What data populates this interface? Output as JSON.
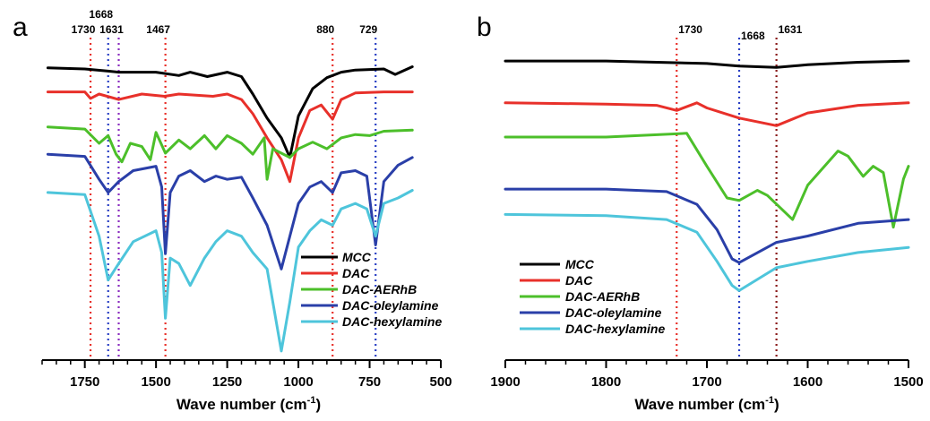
{
  "chart_data": [
    {
      "panel_label": "a",
      "type": "line",
      "xlabel": "Wave number (cm",
      "xlabel_sup": "-1",
      "xlabel_end": ")",
      "ylabel": "",
      "x_reversed": true,
      "xlim": [
        1900,
        500
      ],
      "ylim": [
        -1.4,
        1.5
      ],
      "xticks": [
        1750,
        1500,
        1250,
        1000,
        750,
        500
      ],
      "tick_labels": [
        "1750",
        "1500",
        "1250",
        "1000",
        "750",
        "500"
      ],
      "legend_position": "bottom-right",
      "annotations": [
        {
          "label": "1730",
          "x": 1730,
          "color": "#e8302a"
        },
        {
          "label": "1668",
          "x": 1668,
          "color": "#2a3fc4"
        },
        {
          "label": "1631",
          "x": 1631,
          "color": "#8a2bbf"
        },
        {
          "label": "1467",
          "x": 1467,
          "color": "#e8302a"
        },
        {
          "label": "880",
          "x": 880,
          "color": "#e8302a"
        },
        {
          "label": "729",
          "x": 729,
          "color": "#2a3fc4"
        }
      ],
      "series": [
        {
          "name": "MCC",
          "color": "#000000",
          "points": [
            [
              1880,
              1.24
            ],
            [
              1750,
              1.23
            ],
            [
              1668,
              1.21
            ],
            [
              1631,
              1.2
            ],
            [
              1500,
              1.2
            ],
            [
              1420,
              1.17
            ],
            [
              1380,
              1.2
            ],
            [
              1320,
              1.16
            ],
            [
              1250,
              1.2
            ],
            [
              1200,
              1.16
            ],
            [
              1160,
              1.0
            ],
            [
              1110,
              0.78
            ],
            [
              1060,
              0.6
            ],
            [
              1030,
              0.42
            ],
            [
              1000,
              0.8
            ],
            [
              950,
              1.05
            ],
            [
              900,
              1.15
            ],
            [
              850,
              1.2
            ],
            [
              800,
              1.22
            ],
            [
              700,
              1.23
            ],
            [
              660,
              1.18
            ],
            [
              600,
              1.25
            ]
          ]
        },
        {
          "name": "DAC",
          "color": "#e8302a",
          "points": [
            [
              1880,
              1.02
            ],
            [
              1750,
              1.02
            ],
            [
              1730,
              0.96
            ],
            [
              1700,
              1.0
            ],
            [
              1631,
              0.95
            ],
            [
              1550,
              1.0
            ],
            [
              1470,
              0.98
            ],
            [
              1420,
              1.0
            ],
            [
              1300,
              0.98
            ],
            [
              1250,
              1.0
            ],
            [
              1200,
              0.95
            ],
            [
              1160,
              0.82
            ],
            [
              1110,
              0.6
            ],
            [
              1060,
              0.4
            ],
            [
              1030,
              0.2
            ],
            [
              1000,
              0.6
            ],
            [
              960,
              0.85
            ],
            [
              920,
              0.9
            ],
            [
              880,
              0.77
            ],
            [
              850,
              0.95
            ],
            [
              800,
              1.01
            ],
            [
              700,
              1.02
            ],
            [
              600,
              1.02
            ]
          ]
        },
        {
          "name": "DAC-AERhB",
          "color": "#4cbf2a",
          "points": [
            [
              1880,
              0.7
            ],
            [
              1750,
              0.68
            ],
            [
              1700,
              0.55
            ],
            [
              1668,
              0.62
            ],
            [
              1640,
              0.45
            ],
            [
              1620,
              0.38
            ],
            [
              1590,
              0.55
            ],
            [
              1550,
              0.52
            ],
            [
              1520,
              0.4
            ],
            [
              1500,
              0.65
            ],
            [
              1467,
              0.46
            ],
            [
              1420,
              0.58
            ],
            [
              1380,
              0.5
            ],
            [
              1330,
              0.62
            ],
            [
              1290,
              0.5
            ],
            [
              1250,
              0.62
            ],
            [
              1200,
              0.55
            ],
            [
              1160,
              0.45
            ],
            [
              1120,
              0.6
            ],
            [
              1110,
              0.22
            ],
            [
              1090,
              0.5
            ],
            [
              1060,
              0.46
            ],
            [
              1030,
              0.42
            ],
            [
              1000,
              0.5
            ],
            [
              950,
              0.56
            ],
            [
              900,
              0.5
            ],
            [
              850,
              0.6
            ],
            [
              800,
              0.63
            ],
            [
              750,
              0.62
            ],
            [
              700,
              0.66
            ],
            [
              600,
              0.67
            ]
          ]
        },
        {
          "name": "DAC-oleylamine",
          "color": "#2a3fa8",
          "points": [
            [
              1880,
              0.45
            ],
            [
              1750,
              0.43
            ],
            [
              1700,
              0.22
            ],
            [
              1668,
              0.1
            ],
            [
              1631,
              0.2
            ],
            [
              1580,
              0.3
            ],
            [
              1500,
              0.34
            ],
            [
              1480,
              0.15
            ],
            [
              1467,
              -0.46
            ],
            [
              1450,
              0.1
            ],
            [
              1420,
              0.25
            ],
            [
              1380,
              0.3
            ],
            [
              1330,
              0.2
            ],
            [
              1290,
              0.25
            ],
            [
              1250,
              0.22
            ],
            [
              1200,
              0.24
            ],
            [
              1160,
              0.05
            ],
            [
              1110,
              -0.2
            ],
            [
              1060,
              -0.6
            ],
            [
              1030,
              -0.3
            ],
            [
              1000,
              0.0
            ],
            [
              960,
              0.15
            ],
            [
              920,
              0.2
            ],
            [
              880,
              0.1
            ],
            [
              850,
              0.28
            ],
            [
              800,
              0.3
            ],
            [
              760,
              0.25
            ],
            [
              729,
              -0.38
            ],
            [
              700,
              0.2
            ],
            [
              650,
              0.35
            ],
            [
              600,
              0.42
            ]
          ]
        },
        {
          "name": "DAC-hexylamine",
          "color": "#4ec5db",
          "points": [
            [
              1880,
              0.1
            ],
            [
              1750,
              0.08
            ],
            [
              1700,
              -0.3
            ],
            [
              1668,
              -0.7
            ],
            [
              1631,
              -0.55
            ],
            [
              1580,
              -0.35
            ],
            [
              1500,
              -0.25
            ],
            [
              1480,
              -0.45
            ],
            [
              1467,
              -1.05
            ],
            [
              1450,
              -0.5
            ],
            [
              1420,
              -0.55
            ],
            [
              1380,
              -0.75
            ],
            [
              1330,
              -0.5
            ],
            [
              1290,
              -0.35
            ],
            [
              1250,
              -0.25
            ],
            [
              1200,
              -0.3
            ],
            [
              1160,
              -0.45
            ],
            [
              1110,
              -0.6
            ],
            [
              1060,
              -1.35
            ],
            [
              1030,
              -0.9
            ],
            [
              1000,
              -0.4
            ],
            [
              960,
              -0.25
            ],
            [
              920,
              -0.15
            ],
            [
              880,
              -0.2
            ],
            [
              850,
              -0.05
            ],
            [
              800,
              0.0
            ],
            [
              760,
              -0.05
            ],
            [
              729,
              -0.3
            ],
            [
              700,
              0.0
            ],
            [
              650,
              0.05
            ],
            [
              600,
              0.12
            ]
          ]
        }
      ]
    },
    {
      "panel_label": "b",
      "type": "line",
      "xlabel": "Wave number (cm",
      "xlabel_sup": "-1",
      "xlabel_end": ")",
      "ylabel": "",
      "x_reversed": true,
      "xlim": [
        1900,
        1500
      ],
      "ylim": [
        -1.2,
        1.3
      ],
      "xticks": [
        1900,
        1800,
        1700,
        1600,
        1500
      ],
      "tick_labels": [
        "1900",
        "1800",
        "1700",
        "1600",
        "1500"
      ],
      "legend_position": "bottom-left",
      "annotations": [
        {
          "label": "1730",
          "x": 1730,
          "color": "#e8302a"
        },
        {
          "label": "1668",
          "x": 1668,
          "color": "#2a3fc4"
        },
        {
          "label": "1631",
          "x": 1631,
          "color": "#8a1a1a"
        }
      ],
      "series": [
        {
          "name": "MCC",
          "color": "#000000",
          "points": [
            [
              1900,
              1.13
            ],
            [
              1800,
              1.13
            ],
            [
              1750,
              1.12
            ],
            [
              1700,
              1.11
            ],
            [
              1668,
              1.09
            ],
            [
              1631,
              1.08
            ],
            [
              1600,
              1.1
            ],
            [
              1550,
              1.12
            ],
            [
              1500,
              1.13
            ]
          ]
        },
        {
          "name": "DAC",
          "color": "#e8302a",
          "points": [
            [
              1900,
              0.8
            ],
            [
              1800,
              0.79
            ],
            [
              1750,
              0.78
            ],
            [
              1730,
              0.74
            ],
            [
              1710,
              0.8
            ],
            [
              1700,
              0.76
            ],
            [
              1668,
              0.68
            ],
            [
              1631,
              0.62
            ],
            [
              1600,
              0.72
            ],
            [
              1550,
              0.78
            ],
            [
              1500,
              0.8
            ]
          ]
        },
        {
          "name": "DAC-AERhB",
          "color": "#4cbf2a",
          "points": [
            [
              1900,
              0.53
            ],
            [
              1800,
              0.53
            ],
            [
              1720,
              0.56
            ],
            [
              1700,
              0.3
            ],
            [
              1680,
              0.05
            ],
            [
              1668,
              0.03
            ],
            [
              1650,
              0.11
            ],
            [
              1640,
              0.07
            ],
            [
              1615,
              -0.12
            ],
            [
              1600,
              0.15
            ],
            [
              1570,
              0.42
            ],
            [
              1560,
              0.38
            ],
            [
              1545,
              0.22
            ],
            [
              1535,
              0.3
            ],
            [
              1525,
              0.25
            ],
            [
              1515,
              -0.18
            ],
            [
              1505,
              0.2
            ],
            [
              1500,
              0.3
            ]
          ]
        },
        {
          "name": "DAC-oleylamine",
          "color": "#2a3fa8",
          "points": [
            [
              1900,
              0.12
            ],
            [
              1800,
              0.12
            ],
            [
              1740,
              0.1
            ],
            [
              1710,
              0.0
            ],
            [
              1690,
              -0.2
            ],
            [
              1675,
              -0.43
            ],
            [
              1668,
              -0.46
            ],
            [
              1631,
              -0.3
            ],
            [
              1600,
              -0.25
            ],
            [
              1550,
              -0.15
            ],
            [
              1500,
              -0.12
            ]
          ]
        },
        {
          "name": "DAC-hexylamine",
          "color": "#4ec5db",
          "points": [
            [
              1900,
              -0.08
            ],
            [
              1800,
              -0.09
            ],
            [
              1740,
              -0.12
            ],
            [
              1710,
              -0.22
            ],
            [
              1690,
              -0.45
            ],
            [
              1675,
              -0.64
            ],
            [
              1668,
              -0.68
            ],
            [
              1631,
              -0.5
            ],
            [
              1600,
              -0.45
            ],
            [
              1550,
              -0.38
            ],
            [
              1500,
              -0.34
            ]
          ]
        }
      ]
    }
  ]
}
